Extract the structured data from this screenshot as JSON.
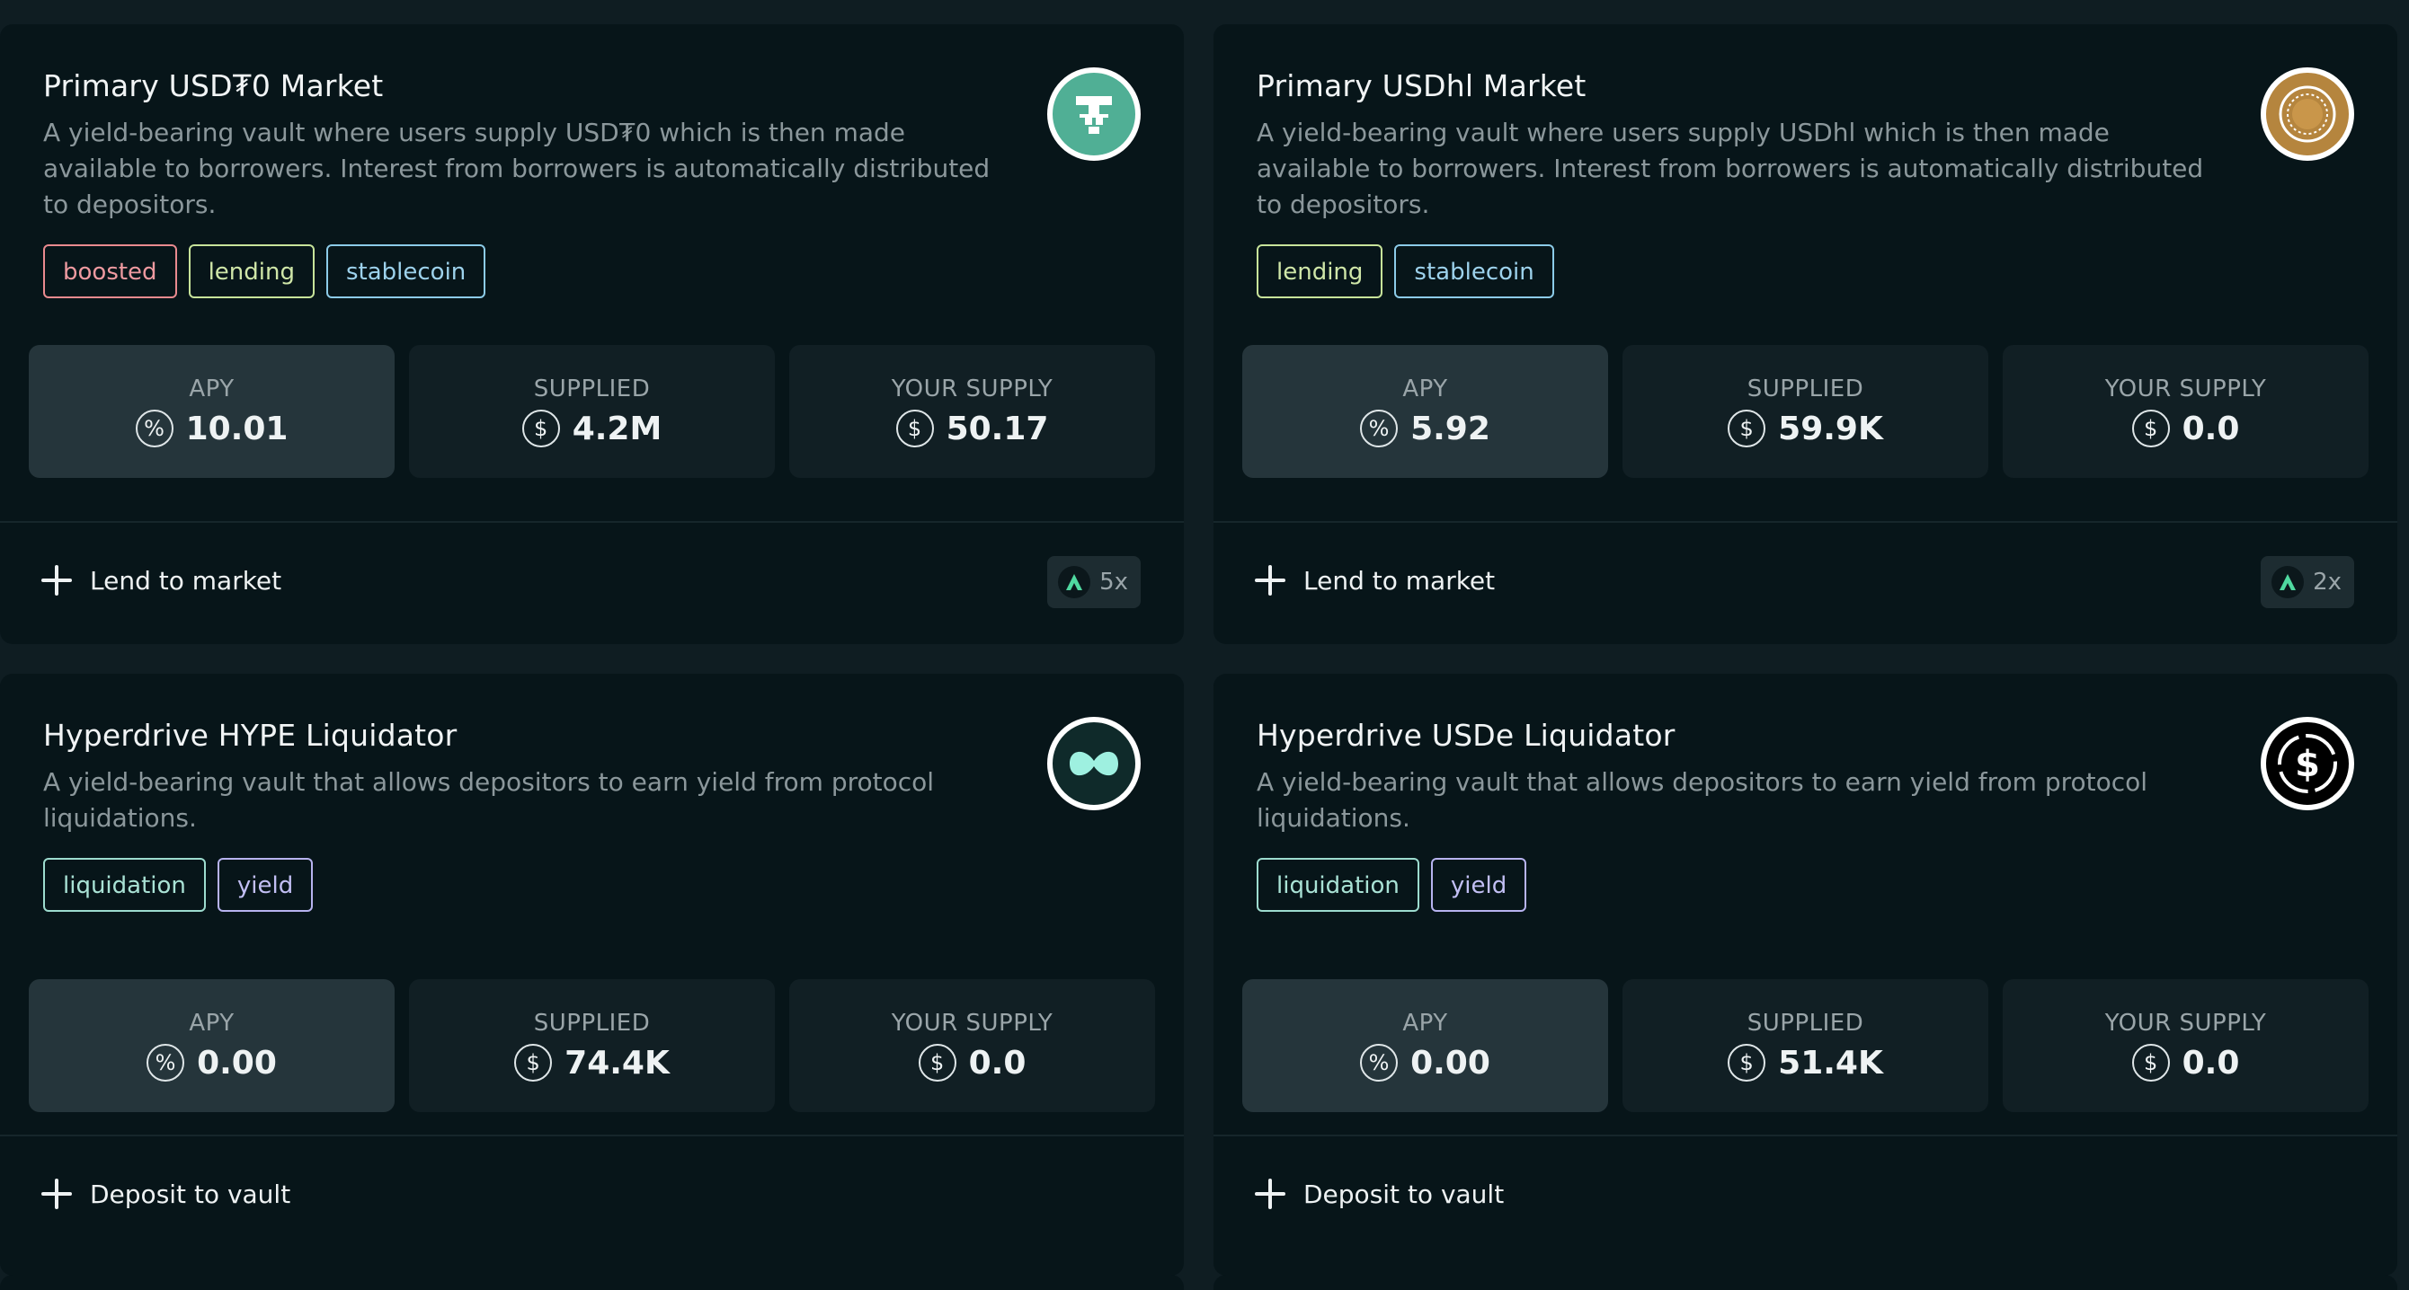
{
  "cards": [
    {
      "title": "Primary USD₮0 Market",
      "description": "A yield-bearing vault where users supply USD₮0 which is then made available to borrowers. Interest from borrowers is automatically distributed to depositors.",
      "tags": [
        "boosted",
        "lending",
        "stablecoin"
      ],
      "logo": {
        "icon": "usdt0-icon",
        "bg": "#50af95"
      },
      "stats": [
        {
          "label": "APY",
          "icon": "percent-icon",
          "symbol": "%",
          "value": "10.01"
        },
        {
          "label": "SUPPLIED",
          "icon": "dollar-icon",
          "symbol": "$",
          "value": "4.2M"
        },
        {
          "label": "YOUR SUPPLY",
          "icon": "dollar-icon",
          "symbol": "$",
          "value": "50.17"
        }
      ],
      "action": "Lend to market",
      "boost": "5x"
    },
    {
      "title": "Primary USDhl Market",
      "description": "A yield-bearing vault where users supply USDhl which is then made available to borrowers. Interest from borrowers is automatically distributed to depositors.",
      "tags": [
        "lending",
        "stablecoin"
      ],
      "logo": {
        "icon": "usdhl-icon",
        "bg": "#b5853e"
      },
      "stats": [
        {
          "label": "APY",
          "icon": "percent-icon",
          "symbol": "%",
          "value": "5.92"
        },
        {
          "label": "SUPPLIED",
          "icon": "dollar-icon",
          "symbol": "$",
          "value": "59.9K"
        },
        {
          "label": "YOUR SUPPLY",
          "icon": "dollar-icon",
          "symbol": "$",
          "value": "0.0"
        }
      ],
      "action": "Lend to market",
      "boost": "2x"
    },
    {
      "title": "Hyperdrive HYPE Liquidator",
      "description": "A yield-bearing vault that allows depositors to earn yield from protocol liquidations.",
      "tags": [
        "liquidation",
        "yield"
      ],
      "logo": {
        "icon": "hype-icon",
        "bg": "#0f2a2a"
      },
      "stats": [
        {
          "label": "APY",
          "icon": "percent-icon",
          "symbol": "%",
          "value": "0.00"
        },
        {
          "label": "SUPPLIED",
          "icon": "dollar-icon",
          "symbol": "$",
          "value": "74.4K"
        },
        {
          "label": "YOUR SUPPLY",
          "icon": "dollar-icon",
          "symbol": "$",
          "value": "0.0"
        }
      ],
      "action": "Deposit to vault"
    },
    {
      "title": "Hyperdrive USDe Liquidator",
      "description": "A yield-bearing vault that allows depositors to earn yield from protocol liquidations.",
      "tags": [
        "liquidation",
        "yield"
      ],
      "logo": {
        "icon": "usde-icon",
        "bg": "#000000"
      },
      "stats": [
        {
          "label": "APY",
          "icon": "percent-icon",
          "symbol": "%",
          "value": "0.00"
        },
        {
          "label": "SUPPLIED",
          "icon": "dollar-icon",
          "symbol": "$",
          "value": "51.4K"
        },
        {
          "label": "YOUR SUPPLY",
          "icon": "dollar-icon",
          "symbol": "$",
          "value": "0.0"
        }
      ],
      "action": "Deposit to vault"
    }
  ]
}
